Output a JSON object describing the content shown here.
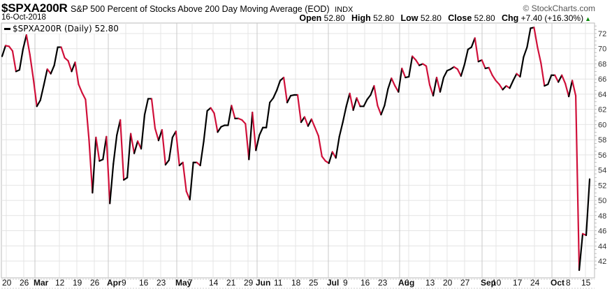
{
  "header": {
    "symbol": "$SPXA200R",
    "description": "S&P 500 Percent of Stocks Above 200 Day Moving Average (EOD)",
    "exchange": "INDX",
    "date": "16-Oct-2018",
    "brand": "© StockCharts.com",
    "open_label": "Open",
    "open": "52.80",
    "high_label": "High",
    "high": "52.80",
    "low_label": "Low",
    "low": "52.80",
    "close_label": "Close",
    "close": "52.80",
    "chg_label": "Chg",
    "chg": "+7.40 (+16.30%)",
    "chg_icon": "up-triangle-icon"
  },
  "legend": {
    "label": "$SPXA200R (Daily) 52.80"
  },
  "colors": {
    "up": "#000000",
    "down": "#d0103a",
    "grid": "#e4e4e4",
    "month_grid": "#c8c8c8"
  },
  "chart_data": {
    "type": "line",
    "title": "$SPXA200R S&P 500 Percent of Stocks Above 200 Day Moving Average (EOD)",
    "xlabel": "",
    "ylabel": "",
    "ylim": [
      40.5,
      73.3
    ],
    "yticks": [
      42,
      44,
      46,
      48,
      50,
      52,
      54,
      56,
      58,
      60,
      62,
      64,
      66,
      68,
      70,
      72
    ],
    "xtick_labels": [
      "20",
      "26",
      "Mar",
      "12",
      "19",
      "26",
      "Apr",
      "9",
      "16",
      "23",
      "May",
      "7",
      "14",
      "21",
      "29",
      "Jun",
      "11",
      "18",
      "25",
      "Jul",
      "9",
      "16",
      "23",
      "Aug",
      "6",
      "13",
      "20",
      "27",
      "Sep",
      "10",
      "17",
      "24",
      "Oct",
      "8",
      "15"
    ],
    "month_labels": [
      "Mar",
      "Apr",
      "May",
      "Jun",
      "Jul",
      "Aug",
      "Sep",
      "Oct"
    ],
    "grid": true,
    "legend_position": "top-left",
    "series": [
      {
        "name": "$SPXA200R (Daily)",
        "values": [
          69.0,
          70.4,
          70.3,
          69.7,
          67.0,
          67.2,
          69.9,
          71.8,
          69.2,
          66.0,
          62.4,
          63.2,
          65.2,
          67.3,
          66.7,
          67.8,
          70.2,
          70.2,
          68.8,
          68.4,
          67.0,
          68.2,
          65.3,
          64.2,
          63.3,
          58.0,
          51.0,
          58.3,
          55.2,
          55.4,
          58.4,
          49.6,
          54.8,
          58.6,
          60.6,
          52.7,
          53.0,
          58.8,
          56.2,
          57.8,
          56.8,
          61.3,
          63.4,
          63.4,
          59.5,
          57.9,
          59.3,
          54.7,
          55.3,
          58.3,
          59.1,
          54.6,
          55.0,
          51.2,
          50.1,
          55.0,
          55.0,
          54.6,
          57.8,
          61.8,
          62.2,
          61.5,
          59.0,
          59.7,
          59.9,
          59.9,
          62.5,
          60.8,
          60.8,
          60.6,
          60.1,
          55.4,
          61.6,
          56.6,
          58.6,
          59.6,
          59.6,
          62.9,
          63.5,
          64.5,
          65.8,
          66.2,
          62.9,
          63.8,
          63.9,
          63.9,
          60.3,
          61.0,
          59.8,
          60.7,
          59.6,
          58.5,
          55.8,
          55.2,
          54.9,
          56.4,
          55.6,
          58.4,
          60.3,
          62.4,
          64.1,
          61.9,
          63.5,
          62.4,
          62.4,
          63.3,
          63.9,
          65.1,
          62.5,
          61.3,
          62.5,
          64.7,
          66.1,
          65.1,
          64.3,
          67.4,
          66.2,
          66.3,
          69.0,
          68.5,
          67.8,
          68.0,
          67.7,
          65.2,
          63.8,
          66.2,
          64.3,
          66.2,
          67.1,
          67.3,
          67.6,
          67.3,
          66.4,
          67.9,
          69.9,
          70.2,
          71.4,
          68.3,
          68.5,
          67.4,
          67.5,
          66.5,
          65.8,
          65.3,
          64.6,
          65.1,
          64.8,
          65.8,
          66.7,
          66.3,
          68.9,
          70.2,
          72.7,
          72.8,
          70.2,
          68.1,
          65.1,
          65.3,
          66.5,
          66.5,
          65.6,
          66.5,
          65.4,
          63.7,
          65.8,
          63.8,
          40.8,
          45.6,
          45.4,
          52.8
        ]
      }
    ]
  }
}
